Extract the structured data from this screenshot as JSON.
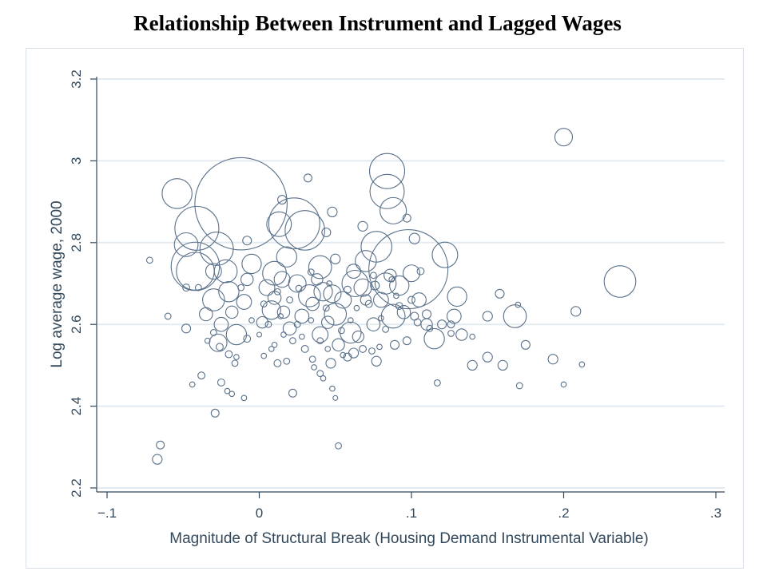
{
  "page": {
    "title": "Relationship Between Instrument and Lagged Wages"
  },
  "chart_data": {
    "type": "scatter",
    "title": "Relationship Between Instrument and Lagged Wages",
    "xlabel": "Magnitude of Structural Break (Housing Demand Instrumental Variable)",
    "ylabel": "Log average wage, 2000",
    "xlim": [
      -0.1,
      0.3
    ],
    "ylim": [
      2.2,
      3.2
    ],
    "x_ticks": [
      -0.1,
      0,
      0.1,
      0.2,
      0.3
    ],
    "x_tick_labels": [
      "−.1",
      "0",
      ".1",
      ".2",
      ".3"
    ],
    "y_ticks": [
      2.2,
      2.4,
      2.6,
      2.8,
      3.0,
      3.2
    ],
    "y_tick_labels": [
      "2.2",
      "2.4",
      "2.6",
      "2.8",
      "3",
      "3.2"
    ],
    "grid": true,
    "marker": "hollow circle sized by weight",
    "colors": {
      "marker": "#5a718a",
      "grid": "#e3ebf1",
      "axis": "#33485a"
    },
    "points": [
      {
        "x": -0.012,
        "y": 2.895,
        "s": 10.5
      },
      {
        "x": 0.098,
        "y": 2.735,
        "s": 9.0
      },
      {
        "x": 0.023,
        "y": 2.847,
        "s": 5.8
      },
      {
        "x": -0.042,
        "y": 2.742,
        "s": 5.5
      },
      {
        "x": -0.041,
        "y": 2.835,
        "s": 5.0
      },
      {
        "x": 0.03,
        "y": 2.83,
        "s": 4.5
      },
      {
        "x": 0.084,
        "y": 2.975,
        "s": 4.0
      },
      {
        "x": 0.084,
        "y": 2.925,
        "s": 3.9
      },
      {
        "x": -0.028,
        "y": 2.785,
        "s": 3.8
      },
      {
        "x": -0.042,
        "y": 2.73,
        "s": 4.3
      },
      {
        "x": 0.077,
        "y": 2.79,
        "s": 3.5
      },
      {
        "x": 0.237,
        "y": 2.705,
        "s": 3.6
      },
      {
        "x": -0.054,
        "y": 2.92,
        "s": 3.4
      },
      {
        "x": 0.088,
        "y": 2.878,
        "s": 3.0
      },
      {
        "x": 0.122,
        "y": 2.77,
        "s": 2.9
      },
      {
        "x": 0.013,
        "y": 2.845,
        "s": 2.8
      },
      {
        "x": 0.063,
        "y": 2.7,
        "s": 3.0
      },
      {
        "x": -0.048,
        "y": 2.795,
        "s": 2.7
      },
      {
        "x": 0.01,
        "y": 2.725,
        "s": 2.7
      },
      {
        "x": 0.04,
        "y": 2.74,
        "s": 2.6
      },
      {
        "x": -0.022,
        "y": 2.73,
        "s": 2.6
      },
      {
        "x": 0.088,
        "y": 2.62,
        "s": 2.7
      },
      {
        "x": 0.168,
        "y": 2.62,
        "s": 2.6
      },
      {
        "x": 0.033,
        "y": 2.67,
        "s": 2.5
      },
      {
        "x": 0.05,
        "y": 2.625,
        "s": 2.5
      },
      {
        "x": 0.018,
        "y": 2.765,
        "s": 2.3
      },
      {
        "x": -0.005,
        "y": 2.748,
        "s": 2.2
      },
      {
        "x": 0.07,
        "y": 2.755,
        "s": 2.4
      },
      {
        "x": -0.03,
        "y": 2.66,
        "s": 2.5
      },
      {
        "x": 0.06,
        "y": 2.58,
        "s": 2.4
      },
      {
        "x": 0.083,
        "y": 2.7,
        "s": 2.4
      },
      {
        "x": -0.015,
        "y": 2.575,
        "s": 2.3
      },
      {
        "x": 0.115,
        "y": 2.565,
        "s": 2.3
      },
      {
        "x": -0.02,
        "y": 2.68,
        "s": 2.3
      },
      {
        "x": 0.13,
        "y": 2.668,
        "s": 2.2
      },
      {
        "x": 0.092,
        "y": 2.695,
        "s": 2.2
      },
      {
        "x": 0.008,
        "y": 2.635,
        "s": 2.1
      },
      {
        "x": 0.042,
        "y": 2.68,
        "s": 2.1
      },
      {
        "x": 0.025,
        "y": 2.7,
        "s": 2.0
      },
      {
        "x": 0.2,
        "y": 3.058,
        "s": 2.0
      },
      {
        "x": -0.027,
        "y": 2.555,
        "s": 2.0
      },
      {
        "x": 0.048,
        "y": 2.675,
        "s": 2.0
      },
      {
        "x": 0.068,
        "y": 2.69,
        "s": 2.0
      },
      {
        "x": 0.1,
        "y": 2.725,
        "s": 1.9
      },
      {
        "x": 0.015,
        "y": 2.71,
        "s": 1.8
      },
      {
        "x": -0.03,
        "y": 2.73,
        "s": 1.8
      },
      {
        "x": 0.055,
        "y": 2.66,
        "s": 1.9
      },
      {
        "x": 0.005,
        "y": 2.69,
        "s": 1.8
      },
      {
        "x": 0.04,
        "y": 2.575,
        "s": 1.8
      },
      {
        "x": 0.08,
        "y": 2.66,
        "s": 1.7
      },
      {
        "x": -0.01,
        "y": 2.655,
        "s": 1.7
      },
      {
        "x": 0.105,
        "y": 2.66,
        "s": 1.6
      },
      {
        "x": 0.028,
        "y": 2.62,
        "s": 1.6
      },
      {
        "x": -0.025,
        "y": 2.6,
        "s": 1.6
      },
      {
        "x": 0.062,
        "y": 2.73,
        "s": 1.6
      },
      {
        "x": 0.02,
        "y": 2.59,
        "s": 1.5
      },
      {
        "x": 0.128,
        "y": 2.62,
        "s": 1.6
      },
      {
        "x": -0.035,
        "y": 2.625,
        "s": 1.5
      },
      {
        "x": 0.095,
        "y": 2.63,
        "s": 1.5
      },
      {
        "x": 0.075,
        "y": 2.6,
        "s": 1.5
      },
      {
        "x": 0.01,
        "y": 2.665,
        "s": 1.5
      },
      {
        "x": 0.035,
        "y": 2.65,
        "s": 1.5
      },
      {
        "x": -0.008,
        "y": 2.71,
        "s": 1.4
      },
      {
        "x": 0.045,
        "y": 2.605,
        "s": 1.4
      },
      {
        "x": 0.016,
        "y": 2.63,
        "s": 1.4
      },
      {
        "x": 0.086,
        "y": 2.72,
        "s": 1.4
      },
      {
        "x": -0.018,
        "y": 2.63,
        "s": 1.4
      },
      {
        "x": 0.052,
        "y": 2.55,
        "s": 1.4
      },
      {
        "x": 0.065,
        "y": 2.57,
        "s": 1.3
      },
      {
        "x": 0.002,
        "y": 2.605,
        "s": 1.3
      },
      {
        "x": 0.038,
        "y": 2.71,
        "s": 1.3
      },
      {
        "x": 0.11,
        "y": 2.6,
        "s": 1.3
      },
      {
        "x": 0.133,
        "y": 2.575,
        "s": 1.3
      },
      {
        "x": 0.14,
        "y": 2.5,
        "s": 1.1
      },
      {
        "x": 0.15,
        "y": 2.52,
        "s": 1.1
      },
      {
        "x": 0.16,
        "y": 2.5,
        "s": 1.1
      },
      {
        "x": 0.175,
        "y": 2.55,
        "s": 1.0
      },
      {
        "x": 0.193,
        "y": 2.515,
        "s": 1.1
      },
      {
        "x": 0.208,
        "y": 2.632,
        "s": 1.1
      },
      {
        "x": 0.158,
        "y": 2.675,
        "s": 1.0
      },
      {
        "x": 0.15,
        "y": 2.62,
        "s": 1.1
      },
      {
        "x": 0.102,
        "y": 2.81,
        "s": 1.2
      },
      {
        "x": 0.068,
        "y": 2.84,
        "s": 1.1
      },
      {
        "x": 0.07,
        "y": 2.66,
        "s": 1.2
      },
      {
        "x": 0.062,
        "y": 2.53,
        "s": 1.1
      },
      {
        "x": 0.077,
        "y": 2.51,
        "s": 1.1
      },
      {
        "x": 0.047,
        "y": 2.505,
        "s": 1.1
      },
      {
        "x": 0.05,
        "y": 2.76,
        "s": 1.1
      },
      {
        "x": 0.044,
        "y": 2.825,
        "s": 1.0
      },
      {
        "x": 0.048,
        "y": 2.875,
        "s": 1.1
      },
      {
        "x": 0.015,
        "y": 2.905,
        "s": 1.0
      },
      {
        "x": 0.032,
        "y": 2.958,
        "s": 0.9
      },
      {
        "x": 0.097,
        "y": 2.86,
        "s": 0.9
      },
      {
        "x": 0.089,
        "y": 2.55,
        "s": 1.0
      },
      {
        "x": 0.097,
        "y": 2.56,
        "s": 0.9
      },
      {
        "x": 0.11,
        "y": 2.625,
        "s": 1.0
      },
      {
        "x": 0.12,
        "y": 2.6,
        "s": 1.0
      },
      {
        "x": 0.126,
        "y": 2.6,
        "s": 0.8
      },
      {
        "x": 0.106,
        "y": 2.73,
        "s": 0.8
      },
      {
        "x": 0.076,
        "y": 2.695,
        "s": 1.0
      },
      {
        "x": -0.008,
        "y": 2.805,
        "s": 1.0
      },
      {
        "x": -0.048,
        "y": 2.59,
        "s": 1.0
      },
      {
        "x": -0.06,
        "y": 2.62,
        "s": 0.7
      },
      {
        "x": -0.048,
        "y": 2.69,
        "s": 0.8
      },
      {
        "x": -0.072,
        "y": 2.757,
        "s": 0.7
      },
      {
        "x": -0.065,
        "y": 2.305,
        "s": 0.9
      },
      {
        "x": -0.067,
        "y": 2.27,
        "s": 1.1
      },
      {
        "x": -0.029,
        "y": 2.383,
        "s": 0.9
      },
      {
        "x": -0.038,
        "y": 2.475,
        "s": 0.8
      },
      {
        "x": -0.044,
        "y": 2.453,
        "s": 0.6
      },
      {
        "x": -0.025,
        "y": 2.458,
        "s": 0.8
      },
      {
        "x": -0.021,
        "y": 2.437,
        "s": 0.6
      },
      {
        "x": -0.018,
        "y": 2.43,
        "s": 0.6
      },
      {
        "x": -0.01,
        "y": 2.42,
        "s": 0.6
      },
      {
        "x": 0.022,
        "y": 2.432,
        "s": 0.9
      },
      {
        "x": 0.048,
        "y": 2.443,
        "s": 0.6
      },
      {
        "x": 0.05,
        "y": 2.42,
        "s": 0.5
      },
      {
        "x": 0.052,
        "y": 2.303,
        "s": 0.7
      },
      {
        "x": 0.04,
        "y": 2.48,
        "s": 0.7
      },
      {
        "x": 0.042,
        "y": 2.468,
        "s": 0.6
      },
      {
        "x": 0.035,
        "y": 2.515,
        "s": 0.7
      },
      {
        "x": 0.03,
        "y": 2.54,
        "s": 0.8
      },
      {
        "x": 0.012,
        "y": 2.505,
        "s": 0.8
      },
      {
        "x": 0.018,
        "y": 2.51,
        "s": 0.7
      },
      {
        "x": 0.003,
        "y": 2.523,
        "s": 0.6
      },
      {
        "x": -0.016,
        "y": 2.505,
        "s": 0.7
      },
      {
        "x": -0.02,
        "y": 2.527,
        "s": 0.8
      },
      {
        "x": -0.026,
        "y": 2.545,
        "s": 0.8
      },
      {
        "x": -0.008,
        "y": 2.565,
        "s": 0.8
      },
      {
        "x": 0.058,
        "y": 2.52,
        "s": 0.9
      },
      {
        "x": 0.068,
        "y": 2.54,
        "s": 0.8
      },
      {
        "x": 0.074,
        "y": 2.535,
        "s": 0.7
      },
      {
        "x": 0.117,
        "y": 2.457,
        "s": 0.7
      },
      {
        "x": 0.171,
        "y": 2.45,
        "s": 0.7
      },
      {
        "x": 0.2,
        "y": 2.453,
        "s": 0.6
      },
      {
        "x": 0.212,
        "y": 2.502,
        "s": 0.6
      },
      {
        "x": 0.17,
        "y": 2.648,
        "s": 0.6
      },
      {
        "x": 0.14,
        "y": 2.57,
        "s": 0.6
      },
      {
        "x": 0.126,
        "y": 2.578,
        "s": 0.7
      },
      {
        "x": 0.087,
        "y": 2.71,
        "s": 0.6
      },
      {
        "x": 0.079,
        "y": 2.545,
        "s": 0.6
      },
      {
        "x": 0.083,
        "y": 2.588,
        "s": 0.7
      },
      {
        "x": 0.0,
        "y": 2.575,
        "s": 0.5
      },
      {
        "x": -0.005,
        "y": 2.61,
        "s": 0.6
      },
      {
        "x": 0.022,
        "y": 2.56,
        "s": 0.7
      },
      {
        "x": 0.028,
        "y": 2.57,
        "s": 0.6
      },
      {
        "x": 0.045,
        "y": 2.54,
        "s": 0.6
      },
      {
        "x": 0.04,
        "y": 2.56,
        "s": 0.7
      },
      {
        "x": 0.054,
        "y": 2.585,
        "s": 0.7
      },
      {
        "x": 0.016,
        "y": 2.575,
        "s": 0.6
      },
      {
        "x": 0.025,
        "y": 2.6,
        "s": 0.7
      },
      {
        "x": 0.006,
        "y": 2.6,
        "s": 0.7
      },
      {
        "x": -0.03,
        "y": 2.58,
        "s": 0.7
      },
      {
        "x": -0.034,
        "y": 2.56,
        "s": 0.6
      },
      {
        "x": -0.04,
        "y": 2.69,
        "s": 0.7
      },
      {
        "x": 0.034,
        "y": 2.728,
        "s": 0.7
      },
      {
        "x": 0.058,
        "y": 2.685,
        "s": 0.8
      },
      {
        "x": 0.092,
        "y": 2.645,
        "s": 0.8
      },
      {
        "x": 0.1,
        "y": 2.66,
        "s": 0.8
      },
      {
        "x": 0.112,
        "y": 2.59,
        "s": 0.7
      },
      {
        "x": 0.104,
        "y": 2.605,
        "s": 0.8
      },
      {
        "x": 0.102,
        "y": 2.62,
        "s": 0.9
      },
      {
        "x": 0.008,
        "y": 2.54,
        "s": 0.6
      },
      {
        "x": 0.01,
        "y": 2.55,
        "s": 0.6
      },
      {
        "x": -0.015,
        "y": 2.52,
        "s": 0.6
      },
      {
        "x": 0.036,
        "y": 2.495,
        "s": 0.6
      },
      {
        "x": 0.055,
        "y": 2.525,
        "s": 0.6
      },
      {
        "x": 0.06,
        "y": 2.61,
        "s": 0.6
      },
      {
        "x": 0.072,
        "y": 2.65,
        "s": 0.8
      },
      {
        "x": 0.08,
        "y": 2.615,
        "s": 0.6
      },
      {
        "x": 0.046,
        "y": 2.7,
        "s": 0.6
      },
      {
        "x": 0.02,
        "y": 2.66,
        "s": 0.7
      },
      {
        "x": 0.012,
        "y": 2.68,
        "s": 0.7
      },
      {
        "x": 0.003,
        "y": 2.65,
        "s": 0.7
      },
      {
        "x": -0.012,
        "y": 2.69,
        "s": 0.7
      },
      {
        "x": 0.026,
        "y": 2.688,
        "s": 0.7
      },
      {
        "x": 0.044,
        "y": 2.64,
        "s": 0.7
      },
      {
        "x": 0.064,
        "y": 2.64,
        "s": 0.6
      },
      {
        "x": 0.09,
        "y": 2.67,
        "s": 0.6
      },
      {
        "x": 0.075,
        "y": 2.72,
        "s": 0.7
      },
      {
        "x": 0.034,
        "y": 2.61,
        "s": 0.6
      },
      {
        "x": 0.014,
        "y": 2.62,
        "s": 0.6
      }
    ]
  }
}
